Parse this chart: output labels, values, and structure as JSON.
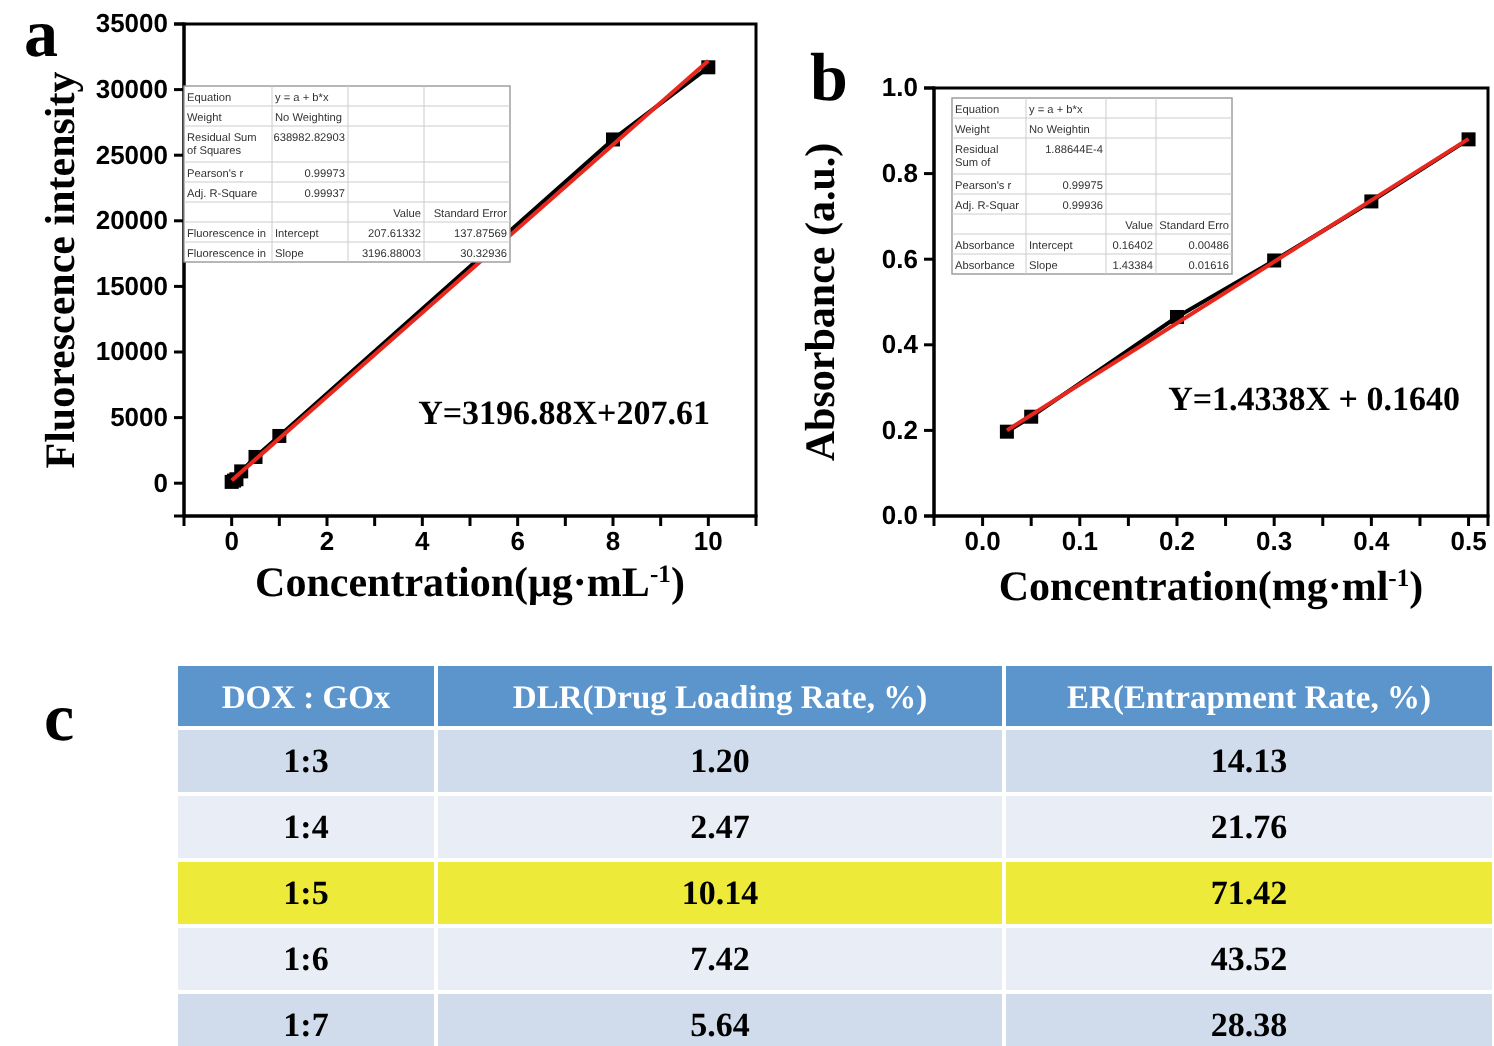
{
  "chart_data": [
    {
      "type": "line",
      "title": "a",
      "xlabel": "Concentration(μg·mL$^{-1}$)",
      "ylabel": "Fluorescence intensity",
      "xlim": [
        -1,
        11
      ],
      "ylim": [
        -2500,
        35000
      ],
      "xticks": [
        0,
        {
          "value": 1,
          "label": null
        },
        2,
        {
          "value": 3,
          "label": null
        },
        4,
        {
          "value": 5,
          "label": null
        },
        6,
        {
          "value": 7,
          "label": null
        },
        8,
        {
          "value": 9,
          "label": null
        },
        10
      ],
      "yticks": [
        0,
        5000,
        10000,
        15000,
        20000,
        25000,
        30000,
        35000
      ],
      "grid": false,
      "line_style": "solid",
      "series": [
        {
          "type": "line",
          "marker": "square",
          "color": "#000000",
          "x": [
            0,
            0.05,
            0.1,
            0.2,
            0.5,
            1,
            8,
            10
          ],
          "values": [
            100,
            200,
            300,
            900,
            2000,
            3600,
            26200,
            31700
          ]
        },
        {
          "type": "line",
          "marker": "none",
          "color": "#e8281e",
          "x": [
            0,
            10
          ],
          "values": [
            210,
            32200
          ]
        }
      ],
      "annotations": [
        "Y=3196.88X+207.61",
        "Equation",
        "y = a + b*x",
        "Weight",
        "No Weighting",
        "Residual Sum of Squares",
        "638982.82903",
        "Pearson's r",
        "0.99973",
        "Adj. R-Square",
        "0.99937",
        "Value",
        "Standard Error",
        "Fluorescence in",
        "Intercept",
        "207.61332",
        "137.87569",
        "Fluorescence in",
        "Slope",
        "3196.88003",
        "30.32936"
      ]
    },
    {
      "type": "line",
      "title": "b",
      "xlabel": "Concentration(mg·ml$^{-1}$)",
      "ylabel": "Absorbance (a.u.)",
      "xlim": [
        -0.05,
        0.52
      ],
      "ylim": [
        0,
        1.0
      ],
      "xticks": [
        {
          "value": 0,
          "label": "0.0"
        },
        {
          "value": 0.05,
          "label": null
        },
        0.1,
        {
          "value": 0.15,
          "label": null
        },
        0.2,
        {
          "value": 0.25,
          "label": null
        },
        0.3,
        {
          "value": 0.35,
          "label": null
        },
        0.4,
        {
          "value": 0.45,
          "label": null
        },
        0.5
      ],
      "yticks": [
        {
          "value": 0,
          "label": "0.0"
        },
        0.2,
        0.4,
        0.6,
        0.8,
        {
          "value": 1,
          "label": "1.0"
        }
      ],
      "grid": false,
      "line_style": "solid",
      "series": [
        {
          "type": "line",
          "marker": "square",
          "color": "#000000",
          "x": [
            0.025,
            0.05,
            0.2,
            0.3,
            0.4,
            0.5
          ],
          "values": [
            0.197,
            0.232,
            0.465,
            0.597,
            0.735,
            0.88
          ]
        },
        {
          "type": "line",
          "marker": "none",
          "color": "#e8281e",
          "x": [
            0.025,
            0.5
          ],
          "values": [
            0.2,
            0.881
          ]
        }
      ],
      "annotations": [
        "Y=1.4338X + 0.1640",
        "Equation",
        "y = a + b*x",
        "Weight",
        "No Weightin",
        "Residual Sum of",
        "1.88644E-4",
        "Pearson's r",
        "0.99975",
        "Adj. R-Squar",
        "0.99936",
        "Value",
        "Standard Erro",
        "Absorbance",
        "Intercept",
        "0.16402",
        "0.00486",
        "Absorbance",
        "Slope",
        "1.43384",
        "0.01616"
      ]
    },
    {
      "type": "heatmap",
      "title": "c",
      "ylabel": "DOX : GOx",
      "categories": [
        "DLR(Drug Loading Rate, %)",
        "ER(Entrapment Rate, %)"
      ],
      "y_categories": [
        "1:3",
        "1:4",
        "1:5",
        "1:6",
        "1:7"
      ],
      "cells": [
        [
          1.2,
          14.13
        ],
        [
          2.47,
          21.76
        ],
        [
          10.14,
          71.42
        ],
        [
          7.42,
          43.52
        ],
        [
          5.64,
          28.38
        ]
      ],
      "cell_labels": [
        [
          "1.20",
          "14.13"
        ],
        [
          "2.47",
          "21.76"
        ],
        [
          "10.14",
          "71.42"
        ],
        [
          "7.42",
          "43.52"
        ],
        [
          "5.64",
          "28.38"
        ]
      ],
      "colors": [
        "#d0dcec",
        "#e9edf5",
        "#eeea3a",
        "#e9edf5",
        "#d0dcec"
      ],
      "data_labels": true
    }
  ]
}
